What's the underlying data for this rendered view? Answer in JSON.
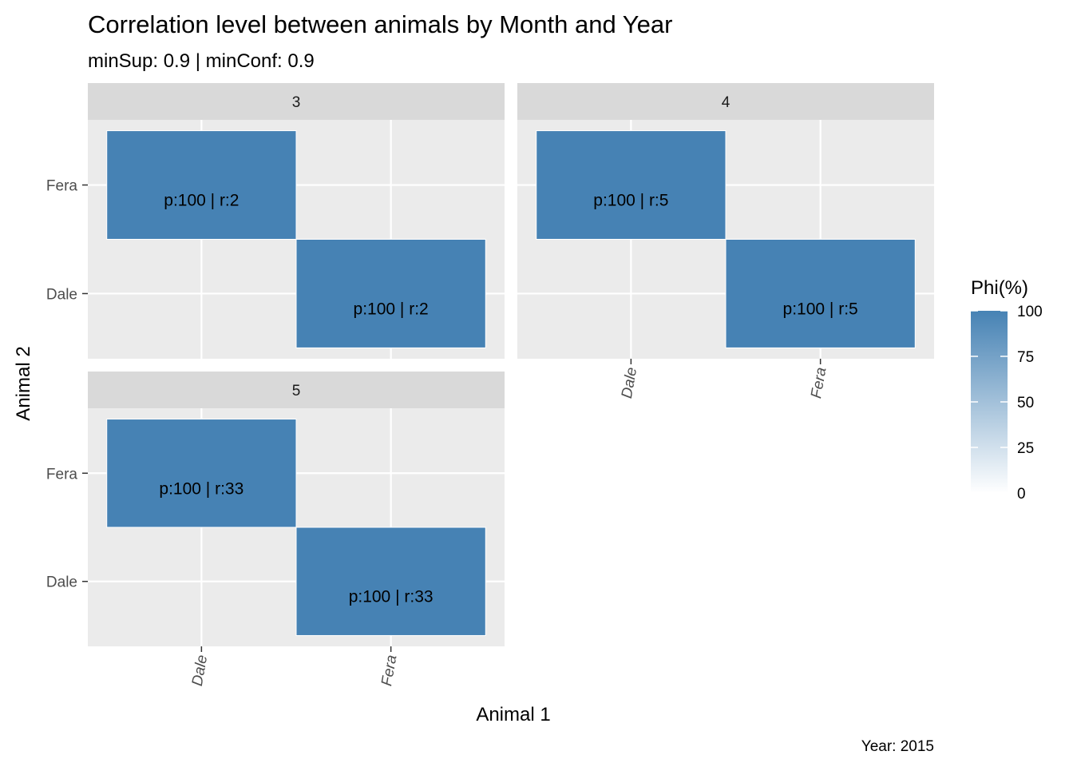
{
  "chart_data": {
    "type": "heatmap",
    "title": "Correlation level between animals by Month and Year",
    "subtitle": "minSup: 0.9 | minConf: 0.9",
    "xlabel": "Animal 1",
    "ylabel": "Animal 2",
    "caption": "Year: 2015",
    "x_categories": [
      "Dale",
      "Fera"
    ],
    "y_categories": [
      "Dale",
      "Fera"
    ],
    "fill_color": "#4682b4",
    "legend": {
      "title": "Phi(%)",
      "position": "right",
      "range": [
        0,
        100
      ],
      "ticks": [
        "100",
        "75",
        "50",
        "25",
        "0"
      ],
      "low_color": "#ffffff",
      "high_color": "#4682b4"
    },
    "panels": [
      {
        "facet": "3",
        "cells": [
          {
            "x": "Dale",
            "y": "Fera",
            "phi": 100,
            "label": "p:100 | r:2"
          },
          {
            "x": "Fera",
            "y": "Dale",
            "phi": 100,
            "label": "p:100 | r:2"
          }
        ]
      },
      {
        "facet": "4",
        "cells": [
          {
            "x": "Dale",
            "y": "Fera",
            "phi": 100,
            "label": "p:100 | r:5"
          },
          {
            "x": "Fera",
            "y": "Dale",
            "phi": 100,
            "label": "p:100 | r:5"
          }
        ]
      },
      {
        "facet": "5",
        "cells": [
          {
            "x": "Dale",
            "y": "Fera",
            "phi": 100,
            "label": "p:100 | r:33"
          },
          {
            "x": "Fera",
            "y": "Dale",
            "phi": 100,
            "label": "p:100 | r:33"
          }
        ]
      }
    ]
  }
}
